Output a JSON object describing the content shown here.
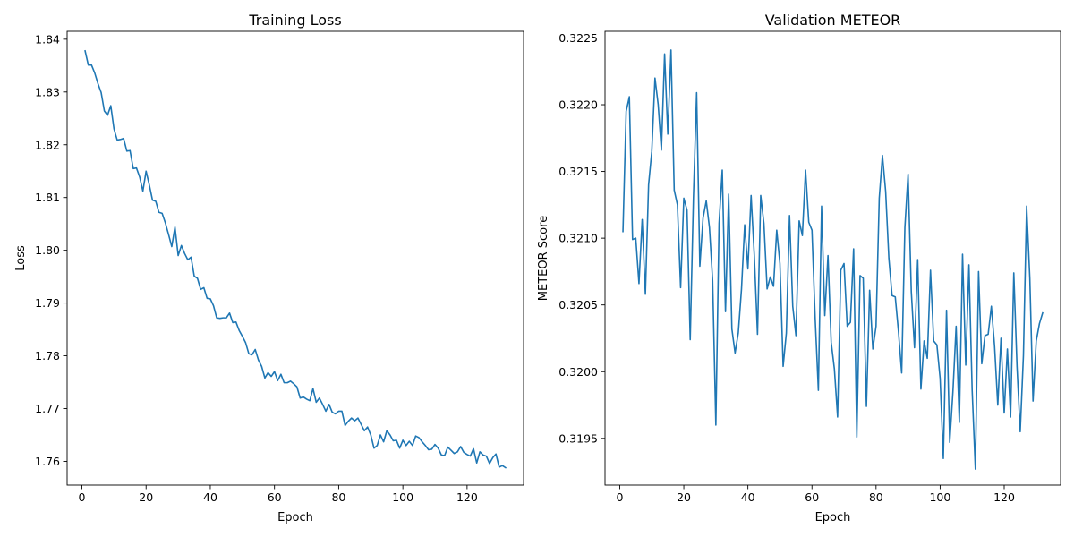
{
  "chart_data": [
    {
      "type": "line",
      "title": "Training Loss",
      "xlabel": "Epoch",
      "ylabel": "Loss",
      "xlim": [
        -4.6,
        137.6
      ],
      "ylim": [
        1.7555,
        1.8415
      ],
      "xticks": [
        0,
        20,
        40,
        60,
        80,
        100,
        120
      ],
      "xtick_labels": [
        "0",
        "20",
        "40",
        "60",
        "80",
        "100",
        "120"
      ],
      "yticks": [
        1.76,
        1.77,
        1.78,
        1.79,
        1.8,
        1.81,
        1.82,
        1.83,
        1.84
      ],
      "ytick_labels": [
        "1.76",
        "1.77",
        "1.78",
        "1.79",
        "1.80",
        "1.81",
        "1.82",
        "1.83",
        "1.84"
      ],
      "grid": false,
      "series": [
        {
          "color": "#1f77b4",
          "x": [
            1,
            2,
            3,
            4,
            5,
            6,
            7,
            8,
            9,
            10,
            11,
            12,
            13,
            14,
            15,
            16,
            17,
            18,
            19,
            20,
            21,
            22,
            23,
            24,
            25,
            26,
            27,
            28,
            29,
            30,
            31,
            32,
            33,
            34,
            35,
            36,
            37,
            38,
            39,
            40,
            41,
            42,
            43,
            44,
            45,
            46,
            47,
            48,
            49,
            50,
            51,
            52,
            53,
            54,
            55,
            56,
            57,
            58,
            59,
            60,
            61,
            62,
            63,
            64,
            65,
            66,
            67,
            68,
            69,
            70,
            71,
            72,
            73,
            74,
            75,
            76,
            77,
            78,
            79,
            80,
            81,
            82,
            83,
            84,
            85,
            86,
            87,
            88,
            89,
            90,
            91,
            92,
            93,
            94,
            95,
            96,
            97,
            98,
            99,
            100,
            101,
            102,
            103,
            104,
            105,
            106,
            107,
            108,
            109,
            110,
            111,
            112,
            113,
            114,
            115,
            116,
            117,
            118,
            119,
            120,
            121,
            122,
            123,
            124,
            125,
            126,
            127,
            128,
            129,
            130,
            131,
            132
          ],
          "values": [
            1.8378,
            1.8351,
            1.8351,
            1.8336,
            1.8316,
            1.8299,
            1.8264,
            1.8256,
            1.8274,
            1.823,
            1.8209,
            1.821,
            1.8212,
            1.8188,
            1.8189,
            1.8155,
            1.8156,
            1.8139,
            1.8112,
            1.815,
            1.8124,
            1.8095,
            1.8093,
            1.8072,
            1.807,
            1.8052,
            1.803,
            1.8007,
            1.8044,
            1.799,
            1.8009,
            1.7994,
            1.7982,
            1.7987,
            1.7951,
            1.7947,
            1.7926,
            1.7929,
            1.7909,
            1.7908,
            1.7895,
            1.7872,
            1.7871,
            1.7872,
            1.7872,
            1.7881,
            1.7863,
            1.7864,
            1.7848,
            1.7837,
            1.7825,
            1.7804,
            1.7802,
            1.7812,
            1.7792,
            1.778,
            1.7758,
            1.7768,
            1.7761,
            1.777,
            1.7753,
            1.7765,
            1.7749,
            1.7749,
            1.7752,
            1.7747,
            1.7741,
            1.772,
            1.7722,
            1.7718,
            1.7715,
            1.7738,
            1.7712,
            1.772,
            1.7708,
            1.7695,
            1.7708,
            1.7693,
            1.769,
            1.7695,
            1.7695,
            1.7668,
            1.7676,
            1.7682,
            1.7677,
            1.7682,
            1.767,
            1.7658,
            1.7665,
            1.765,
            1.7625,
            1.763,
            1.765,
            1.7637,
            1.7658,
            1.765,
            1.7639,
            1.764,
            1.7625,
            1.764,
            1.763,
            1.7638,
            1.763,
            1.7648,
            1.7645,
            1.7637,
            1.763,
            1.7622,
            1.7623,
            1.7632,
            1.7625,
            1.7612,
            1.7611,
            1.7627,
            1.7621,
            1.7615,
            1.7618,
            1.7628,
            1.7617,
            1.7613,
            1.761,
            1.7624,
            1.7597,
            1.7618,
            1.7612,
            1.761,
            1.7596,
            1.7607,
            1.7614,
            1.7589,
            1.7592,
            1.7588
          ]
        }
      ]
    },
    {
      "type": "line",
      "title": "Validation METEOR",
      "xlabel": "Epoch",
      "ylabel": "METEOR Score",
      "xlim": [
        -4.6,
        137.6
      ],
      "ylim": [
        0.31915,
        0.32255
      ],
      "xticks": [
        0,
        20,
        40,
        60,
        80,
        100,
        120
      ],
      "xtick_labels": [
        "0",
        "20",
        "40",
        "60",
        "80",
        "100",
        "120"
      ],
      "yticks": [
        0.3195,
        0.32,
        0.3205,
        0.321,
        0.3215,
        0.322,
        0.3225
      ],
      "ytick_labels": [
        "0.3195",
        "0.3200",
        "0.3205",
        "0.3210",
        "0.3215",
        "0.3220",
        "0.3225"
      ],
      "grid": false,
      "series": [
        {
          "color": "#1f77b4",
          "x": [
            1,
            2,
            3,
            4,
            5,
            6,
            7,
            8,
            9,
            10,
            11,
            12,
            13,
            14,
            15,
            16,
            17,
            18,
            19,
            20,
            21,
            22,
            23,
            24,
            25,
            26,
            27,
            28,
            29,
            30,
            31,
            32,
            33,
            34,
            35,
            36,
            37,
            38,
            39,
            40,
            41,
            42,
            43,
            44,
            45,
            46,
            47,
            48,
            49,
            50,
            51,
            52,
            53,
            54,
            55,
            56,
            57,
            58,
            59,
            60,
            61,
            62,
            63,
            64,
            65,
            66,
            67,
            68,
            69,
            70,
            71,
            72,
            73,
            74,
            75,
            76,
            77,
            78,
            79,
            80,
            81,
            82,
            83,
            84,
            85,
            86,
            87,
            88,
            89,
            90,
            91,
            92,
            93,
            94,
            95,
            96,
            97,
            98,
            99,
            100,
            101,
            102,
            103,
            104,
            105,
            106,
            107,
            108,
            109,
            110,
            111,
            112,
            113,
            114,
            115,
            116,
            117,
            118,
            119,
            120,
            121,
            122,
            123,
            124,
            125,
            126,
            127,
            128,
            129,
            130,
            131,
            132
          ],
          "values": [
            0.32105,
            0.32195,
            0.32206,
            0.32099,
            0.321,
            0.32066,
            0.32114,
            0.32058,
            0.3214,
            0.32165,
            0.3222,
            0.322,
            0.32166,
            0.32238,
            0.32178,
            0.32241,
            0.32136,
            0.32125,
            0.32063,
            0.3213,
            0.32121,
            0.32024,
            0.3213,
            0.32209,
            0.32079,
            0.32115,
            0.32128,
            0.32108,
            0.32068,
            0.3196,
            0.32111,
            0.32151,
            0.32045,
            0.32133,
            0.32032,
            0.32014,
            0.32029,
            0.32062,
            0.3211,
            0.32077,
            0.32132,
            0.32087,
            0.32028,
            0.32132,
            0.32111,
            0.32062,
            0.32071,
            0.32064,
            0.32106,
            0.32081,
            0.32004,
            0.32029,
            0.32117,
            0.32049,
            0.32027,
            0.32113,
            0.32102,
            0.32151,
            0.32112,
            0.32106,
            0.3204,
            0.31986,
            0.32124,
            0.32042,
            0.32087,
            0.32022,
            0.32002,
            0.31966,
            0.32076,
            0.32081,
            0.32034,
            0.32037,
            0.32092,
            0.31951,
            0.32072,
            0.3207,
            0.31974,
            0.32061,
            0.32017,
            0.32034,
            0.3213,
            0.32162,
            0.32135,
            0.32085,
            0.32057,
            0.32056,
            0.3203,
            0.31999,
            0.32108,
            0.32148,
            0.3206,
            0.32018,
            0.32084,
            0.31987,
            0.32023,
            0.3201,
            0.32076,
            0.32023,
            0.3202,
            0.31995,
            0.31935,
            0.32046,
            0.31947,
            0.31985,
            0.32034,
            0.31962,
            0.32088,
            0.32005,
            0.3208,
            0.31986,
            0.31927,
            0.32075,
            0.32006,
            0.32027,
            0.32028,
            0.32049,
            0.32019,
            0.31975,
            0.32025,
            0.31969,
            0.32017,
            0.31966,
            0.32074,
            0.32004,
            0.31955,
            0.32012,
            0.32124,
            0.3207,
            0.31978,
            0.32023,
            0.32036,
            0.32044
          ]
        }
      ]
    }
  ]
}
